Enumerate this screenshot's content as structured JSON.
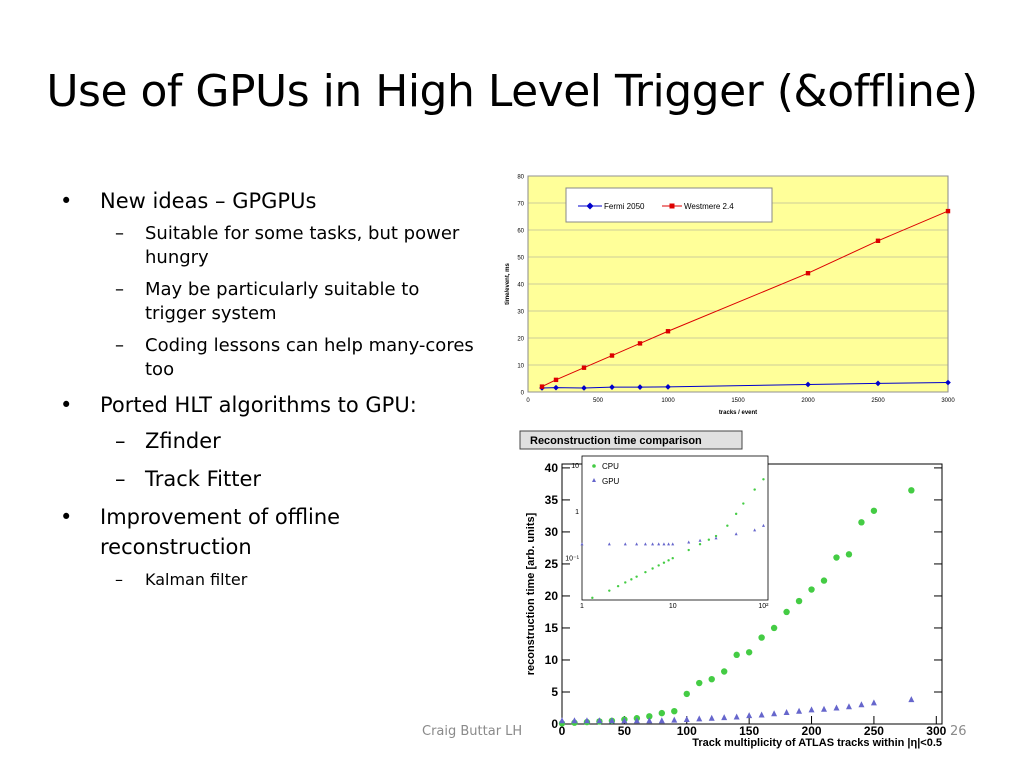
{
  "slide": {
    "title": "Use of GPUs in High Level Trigger (&offline)",
    "bullets": [
      {
        "text": "New ideas – GPGPUs",
        "sub": [
          "Suitable for some tasks, but power hungry",
          "May be particularly suitable to trigger system",
          "Coding lessons can help many-cores too"
        ]
      },
      {
        "text": "Ported HLT algorithms to GPU:",
        "sub": [
          "Zfinder",
          "Track Fitter"
        ]
      },
      {
        "text": "Improvement of offline reconstruction",
        "sub": [
          "Kalman filter"
        ]
      }
    ],
    "footer": "Craig Buttar LH",
    "page_number": "26"
  },
  "chart_data": [
    {
      "type": "line",
      "xlabel": "tracks / event",
      "ylabel": "time/event, ms",
      "xlim": [
        0,
        3000
      ],
      "ylim": [
        0,
        80
      ],
      "xticks": [
        0,
        500,
        1000,
        1500,
        2000,
        2500,
        3000
      ],
      "yticks": [
        0,
        10,
        20,
        30,
        40,
        50,
        60,
        70,
        80
      ],
      "grid": true,
      "legend": "top-center",
      "colors": {
        "plot_bg": "#ffff99",
        "fermi": "#0000cc",
        "westmere": "#dd0000"
      },
      "series": [
        {
          "name": "Fermi 2050",
          "x": [
            100,
            200,
            400,
            600,
            800,
            1000,
            2000,
            2500,
            3000
          ],
          "values": [
            1.5,
            1.6,
            1.5,
            1.8,
            1.8,
            1.9,
            2.8,
            3.2,
            3.5
          ]
        },
        {
          "name": "Westmere 2.4",
          "x": [
            100,
            200,
            400,
            600,
            800,
            1000,
            2000,
            2500,
            3000
          ],
          "values": [
            2,
            4.5,
            9,
            13.5,
            18,
            22.5,
            44,
            56,
            67
          ]
        }
      ]
    },
    {
      "type": "scatter",
      "title": "Reconstruction time comparison",
      "xlabel": "Track multiplicity of ATLAS tracks within |η|<0.5",
      "ylabel": "reconstruction time [arb. units]",
      "xlim": [
        0,
        300
      ],
      "ylim": [
        0,
        40
      ],
      "xticks": [
        0,
        50,
        100,
        150,
        200,
        250,
        300
      ],
      "yticks": [
        0,
        5,
        10,
        15,
        20,
        25,
        30,
        35,
        40
      ],
      "colors": {
        "cpu": "#44cc44",
        "gpu": "#6666cc"
      },
      "series": [
        {
          "name": "CPU",
          "x": [
            0,
            10,
            20,
            30,
            40,
            50,
            60,
            70,
            80,
            90,
            100,
            110,
            120,
            130,
            140,
            150,
            160,
            170,
            180,
            190,
            200,
            210,
            220,
            230,
            240,
            250,
            280
          ],
          "values": [
            0.1,
            0.2,
            0.3,
            0.4,
            0.5,
            0.7,
            0.9,
            1.2,
            1.7,
            2,
            4.7,
            6.4,
            7,
            8.2,
            10.8,
            11.2,
            13.5,
            15,
            17.5,
            19.2,
            21,
            22.4,
            26,
            26.5,
            31.5,
            33.3,
            36.5
          ]
        },
        {
          "name": "GPU",
          "x": [
            0,
            10,
            20,
            30,
            40,
            50,
            60,
            70,
            80,
            90,
            100,
            110,
            120,
            130,
            140,
            150,
            160,
            170,
            180,
            190,
            200,
            210,
            220,
            230,
            240,
            250,
            280
          ],
          "values": [
            0.5,
            0.5,
            0.5,
            0.5,
            0.5,
            0.5,
            0.5,
            0.5,
            0.5,
            0.6,
            0.7,
            0.8,
            0.9,
            1,
            1.1,
            1.3,
            1.4,
            1.6,
            1.8,
            2,
            2.2,
            2.3,
            2.5,
            2.7,
            3,
            3.3,
            3.8
          ]
        }
      ],
      "inset": {
        "type": "scatter",
        "xscale": "log",
        "yscale": "log",
        "xticks": [
          "1",
          "10",
          "10²"
        ],
        "yticks": [
          "10",
          "1",
          "10⁻¹"
        ],
        "legend": "top-left",
        "series": [
          {
            "name": "CPU",
            "x": [
              1.3,
              2,
              2.5,
              3,
              3.5,
              4,
              5,
              6,
              7,
              8,
              9,
              10,
              15,
              20,
              25,
              30,
              40,
              50,
              60,
              80,
              100
            ],
            "values": [
              0.014,
              0.02,
              0.025,
              0.03,
              0.035,
              0.04,
              0.05,
              0.06,
              0.07,
              0.08,
              0.09,
              0.1,
              0.15,
              0.2,
              0.25,
              0.3,
              0.5,
              0.9,
              1.5,
              3,
              5
            ]
          },
          {
            "name": "GPU",
            "x": [
              1,
              2,
              3,
              4,
              5,
              6,
              7,
              8,
              9,
              10,
              15,
              20,
              30,
              50,
              80,
              100
            ],
            "values": [
              0.2,
              0.2,
              0.2,
              0.2,
              0.2,
              0.2,
              0.2,
              0.2,
              0.2,
              0.2,
              0.22,
              0.24,
              0.27,
              0.33,
              0.4,
              0.5
            ]
          }
        ]
      }
    }
  ]
}
